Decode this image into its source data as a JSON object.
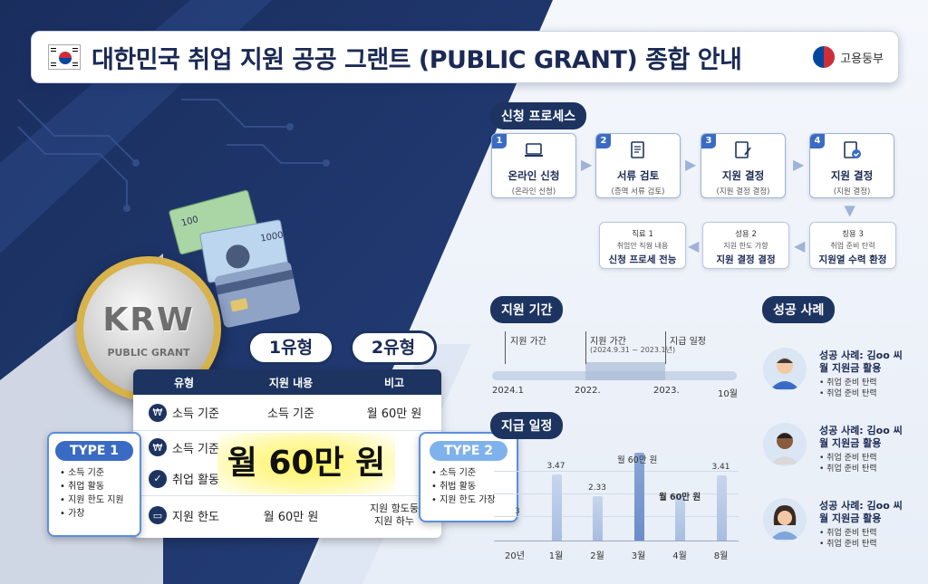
{
  "header": {
    "title": "대한민국 취업 지원 공공 그랜트 (PUBLIC GRANT) 종합 안내",
    "ministry": "고용둥부"
  },
  "process": {
    "heading": "신청 프로세스",
    "steps": [
      {
        "num": "1",
        "label": "온라인 신청",
        "sub": "(온라인 신청)"
      },
      {
        "num": "2",
        "label": "서류 검토",
        "sub": "(증역 서류 검토)"
      },
      {
        "num": "3",
        "label": "지원 결정",
        "sub": "(지원 결정 결정)"
      },
      {
        "num": "4",
        "label": "지원 결정",
        "sub": "(지원 결정)"
      }
    ],
    "lower_steps": [
      {
        "a": "직료 1",
        "b": "취엄안 직웜 내용",
        "c": "신청 프로세 전능"
      },
      {
        "a": "성용 2",
        "b": "지원 한도 가향",
        "c": "지원 결정 결정"
      },
      {
        "a": "칭용 3",
        "b": "취업 준비 탄력",
        "c": "지원열 수력 환정"
      }
    ]
  },
  "coin": {
    "currency": "KRW",
    "caption": "PUBLIC GRANT"
  },
  "types": {
    "type1_pill": "1유형",
    "type2_pill": "2유형"
  },
  "table": {
    "headers": [
      "유형",
      "지원 내용",
      "비고"
    ],
    "rows": [
      {
        "label": "소득 기준",
        "content": "소득 기준",
        "note": "월 60만 원"
      },
      {
        "label": "소득 기준",
        "content": "",
        "note": ""
      },
      {
        "label": "취업 활동",
        "content": "",
        "note": ""
      },
      {
        "label": "지원 한도",
        "content": "월 60만 원",
        "note": "지원 항도둥",
        "note2": "지원 하누"
      }
    ],
    "highlight": "월 60만 원"
  },
  "type_boxes": {
    "type1": {
      "title": "TYPE 1",
      "items": [
        "소득 기준",
        "취업 활동",
        "지원 한도 지원",
        "가창"
      ]
    },
    "type2": {
      "title": "TYPE 2",
      "items": [
        "소득 기준",
        "취법 활동",
        "지원 한도 가장"
      ]
    }
  },
  "period": {
    "heading": "지원 기간",
    "labels": {
      "start": "지원 가간",
      "mid": "지원 가간",
      "mid_sub": "(2024.9.31 ~ 2023.1년)",
      "end": "지급 일정"
    },
    "axis": [
      "2024.1",
      "2022.",
      "2023.",
      "10월"
    ]
  },
  "schedule": {
    "heading": "지급 일정",
    "annotations": {
      "top": "월 60만 원",
      "mid": "월 60만 원"
    },
    "left_value": "3"
  },
  "chart_data": {
    "type": "bar",
    "categories": [
      "20년",
      "1월",
      "2월",
      "3월",
      "4월",
      "8월"
    ],
    "values": [
      null,
      3.47,
      2.33,
      4.6,
      2.5,
      3.41
    ],
    "labels": [
      "",
      "3.47",
      "2.33",
      "",
      "",
      "3.41"
    ],
    "highlight_index": 3
  },
  "cases": {
    "heading": "성공 사례",
    "items": [
      {
        "name": "성공 사례: 김oo 씨",
        "sub": "월 지원금 활용",
        "bullets": [
          "취업 준비 탄력",
          "취업 준비 탄력"
        ]
      },
      {
        "name": "성공 사례: 김oo 씨",
        "sub": "월 지원금 활용",
        "bullets": [
          "취업 준비 탄력",
          "취업 준비 탄력"
        ]
      },
      {
        "name": "성공 사례: 김oo 씨",
        "sub": "월 지원금 활용",
        "bullets": [
          "취업 준비 탄력",
          "취업 준비 탄력"
        ]
      }
    ]
  },
  "colors": {
    "navy": "#1d3461",
    "accent": "#3a6bc4",
    "highlight": "#fff35c"
  }
}
